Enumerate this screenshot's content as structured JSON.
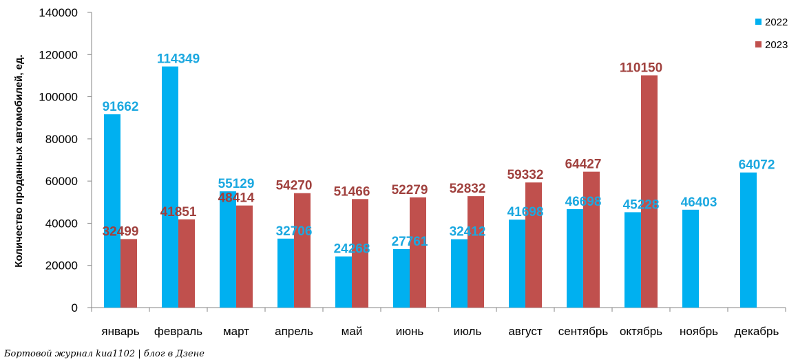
{
  "chart_data": {
    "type": "bar",
    "title": "",
    "xlabel": "",
    "ylabel": "Количество проданных  автомобилей, ед.",
    "ylim": [
      0,
      140000
    ],
    "yticks": [
      0,
      20000,
      40000,
      60000,
      80000,
      100000,
      120000,
      140000
    ],
    "grid": false,
    "legend_position": "top-right",
    "categories": [
      "январь",
      "февраль",
      "март",
      "апрель",
      "май",
      "июнь",
      "июль",
      "август",
      "сентябрь",
      "октябрь",
      "ноябрь",
      "декабрь"
    ],
    "series": [
      {
        "name": "2022",
        "color": "#00B0F0",
        "label_color": "#1BA8E0",
        "values": [
          91662,
          114349,
          55129,
          32706,
          24268,
          27761,
          32412,
          41698,
          46698,
          45228,
          46403,
          64072
        ]
      },
      {
        "name": "2023",
        "color": "#C0504D",
        "label_color": "#A0413E",
        "values": [
          32499,
          41851,
          48414,
          54270,
          51466,
          52279,
          52832,
          59332,
          64427,
          110150,
          null,
          null
        ]
      }
    ]
  },
  "footer": "Бортовой журнал kиа1102 | блог в Дзене"
}
